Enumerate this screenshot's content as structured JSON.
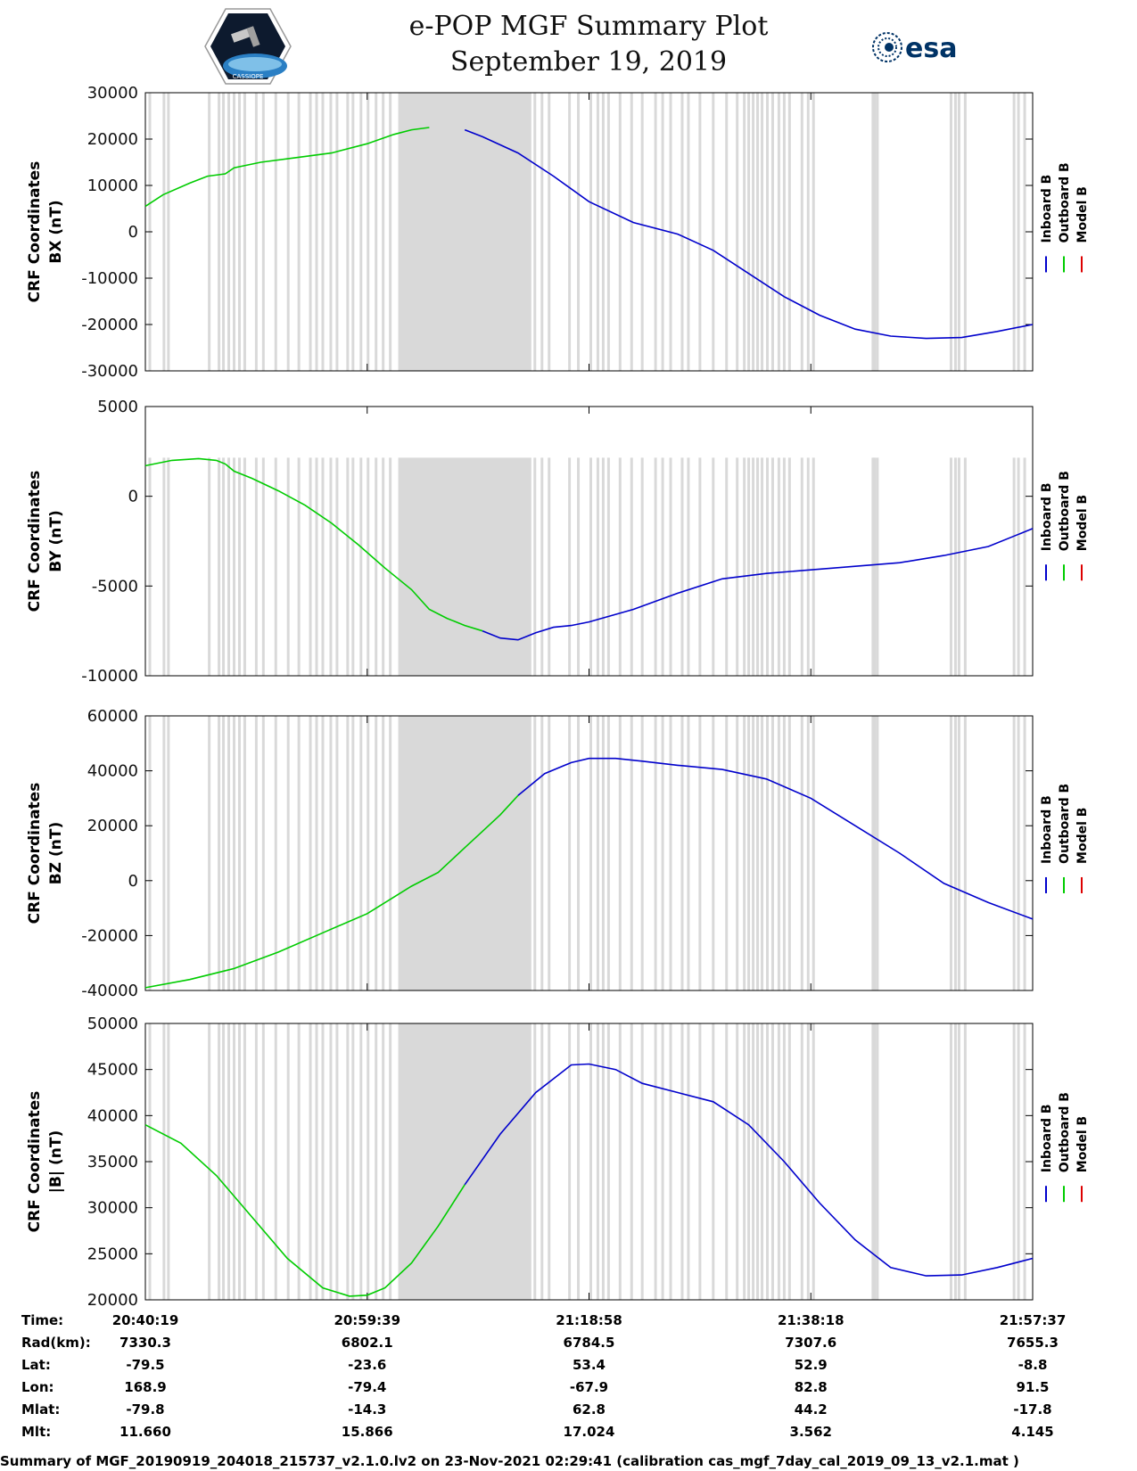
{
  "header": {
    "title": "e-POP MGF Summary Plot",
    "date": "September 19, 2019",
    "logo_left": "CASSIOPE",
    "logo_right": "esa"
  },
  "colors": {
    "inboard": "#0000cc",
    "outboard": "#00cc00",
    "model": "#dd0000",
    "gap": "#d9d9d9"
  },
  "legend": {
    "inboard": "Inboard B",
    "outboard": "Outboard B",
    "model": "Model B"
  },
  "chart_data": [
    {
      "type": "line",
      "title": "BX",
      "ylabel": "CRF Coordinates",
      "ysublabel": "BX (nT)",
      "ylim": [
        -30000,
        30000
      ],
      "yticks": [
        "30000",
        "20000",
        "10000",
        "0",
        "-10000",
        "-20000",
        "-30000"
      ],
      "ytick_values": [
        30000,
        20000,
        10000,
        0,
        -10000,
        -20000,
        -30000
      ],
      "xlim": [
        0,
        1
      ],
      "series": [
        {
          "name": "Outboard B",
          "x": [
            0,
            0.02,
            0.05,
            0.07,
            0.09,
            0.1,
            0.13,
            0.17,
            0.21,
            0.25,
            0.28,
            0.3,
            0.32
          ],
          "y": [
            5500,
            8000,
            10500,
            12000,
            12500,
            13800,
            15000,
            16000,
            17000,
            19000,
            21000,
            22000,
            22500
          ]
        },
        {
          "name": "Inboard B",
          "x": [
            0.36,
            0.38,
            0.42,
            0.46,
            0.5,
            0.55,
            0.6,
            0.64,
            0.68,
            0.72,
            0.76,
            0.8,
            0.84,
            0.88,
            0.92,
            0.96,
            1.0
          ],
          "y": [
            22000,
            20500,
            17000,
            12000,
            6500,
            2000,
            -500,
            -4000,
            -9000,
            -14000,
            -18000,
            -21000,
            -22500,
            -23000,
            -22800,
            -21500,
            -20000
          ]
        }
      ]
    },
    {
      "type": "line",
      "title": "BY",
      "ylabel": "CRF Coordinates",
      "ysublabel": "BY (nT)",
      "ylim": [
        -10000,
        5000
      ],
      "yticks": [
        "5000",
        "0",
        "-5000",
        "-10000"
      ],
      "ytick_values": [
        5000,
        0,
        -5000,
        -10000
      ],
      "xlim": [
        0,
        1
      ],
      "series": [
        {
          "name": "Outboard B",
          "x": [
            0,
            0.03,
            0.06,
            0.08,
            0.09,
            0.1,
            0.12,
            0.15,
            0.18,
            0.21,
            0.24,
            0.27,
            0.3,
            0.32,
            0.34,
            0.36,
            0.38
          ],
          "y": [
            1700,
            2000,
            2100,
            2000,
            1800,
            1400,
            1000,
            300,
            -500,
            -1500,
            -2700,
            -4000,
            -5200,
            -6300,
            -6800,
            -7200,
            -7500
          ]
        },
        {
          "name": "Inboard B",
          "x": [
            0.38,
            0.4,
            0.42,
            0.44,
            0.46,
            0.48,
            0.5,
            0.55,
            0.6,
            0.65,
            0.7,
            0.75,
            0.8,
            0.85,
            0.9,
            0.95,
            1.0
          ],
          "y": [
            -7500,
            -7900,
            -8000,
            -7600,
            -7300,
            -7200,
            -7000,
            -6300,
            -5400,
            -4600,
            -4300,
            -4100,
            -3900,
            -3700,
            -3300,
            -2800,
            -1800
          ]
        }
      ]
    },
    {
      "type": "line",
      "title": "BZ",
      "ylabel": "CRF Coordinates",
      "ysublabel": "BZ (nT)",
      "ylim": [
        -40000,
        60000
      ],
      "yticks": [
        "60000",
        "40000",
        "20000",
        "0",
        "-20000",
        "-40000"
      ],
      "ytick_values": [
        60000,
        40000,
        20000,
        0,
        -20000,
        -40000
      ],
      "xlim": [
        0,
        1
      ],
      "series": [
        {
          "name": "Outboard B",
          "x": [
            0,
            0.05,
            0.1,
            0.15,
            0.2,
            0.25,
            0.28,
            0.3,
            0.33,
            0.36,
            0.38,
            0.4,
            0.42
          ],
          "y": [
            -39000,
            -36000,
            -32000,
            -26000,
            -19000,
            -12000,
            -6000,
            -2000,
            3000,
            12000,
            18000,
            24000,
            31000
          ]
        },
        {
          "name": "Inboard B",
          "x": [
            0.42,
            0.45,
            0.48,
            0.5,
            0.53,
            0.56,
            0.6,
            0.65,
            0.7,
            0.75,
            0.8,
            0.85,
            0.9,
            0.95,
            1.0
          ],
          "y": [
            31000,
            39000,
            43000,
            44500,
            44500,
            43500,
            42000,
            40500,
            37000,
            30000,
            20000,
            10000,
            -1000,
            -8000,
            -14000
          ]
        }
      ]
    },
    {
      "type": "line",
      "title": "|B|",
      "ylabel": "CRF Coordinates",
      "ysublabel": "|B| (nT)",
      "ylim": [
        20000,
        50000
      ],
      "yticks": [
        "50000",
        "45000",
        "40000",
        "35000",
        "30000",
        "25000",
        "20000"
      ],
      "ytick_values": [
        50000,
        45000,
        40000,
        35000,
        30000,
        25000,
        20000
      ],
      "xlim": [
        0,
        1
      ],
      "series": [
        {
          "name": "Outboard B",
          "x": [
            0,
            0.04,
            0.08,
            0.12,
            0.16,
            0.2,
            0.23,
            0.25,
            0.27,
            0.3,
            0.33,
            0.36
          ],
          "y": [
            39000,
            37000,
            33500,
            29000,
            24500,
            21300,
            20400,
            20500,
            21300,
            24000,
            28000,
            32500
          ]
        },
        {
          "name": "Inboard B",
          "x": [
            0.36,
            0.4,
            0.44,
            0.48,
            0.5,
            0.53,
            0.56,
            0.6,
            0.64,
            0.68,
            0.72,
            0.76,
            0.8,
            0.84,
            0.88,
            0.92,
            0.96,
            1.0
          ],
          "y": [
            32500,
            38000,
            42500,
            45500,
            45600,
            45000,
            43500,
            42500,
            41500,
            39000,
            35000,
            30500,
            26500,
            23500,
            22600,
            22700,
            23500,
            24500
          ]
        }
      ]
    }
  ],
  "gaps": {
    "solid": [
      [
        0.285,
        0.435
      ]
    ],
    "lines": [
      0.005,
      0.021,
      0.026,
      0.072,
      0.083,
      0.088,
      0.094,
      0.1,
      0.106,
      0.112,
      0.125,
      0.133,
      0.147,
      0.161,
      0.173,
      0.186,
      0.193,
      0.2,
      0.209,
      0.216,
      0.228,
      0.234,
      0.243,
      0.251,
      0.26,
      0.268,
      0.276,
      0.439,
      0.447,
      0.455,
      0.478,
      0.488,
      0.502,
      0.51,
      0.516,
      0.522,
      0.535,
      0.548,
      0.56,
      0.575,
      0.583,
      0.592,
      0.605,
      0.612,
      0.625,
      0.64,
      0.655,
      0.667,
      0.675,
      0.68,
      0.685,
      0.69,
      0.695,
      0.701,
      0.707,
      0.714,
      0.72,
      0.726,
      0.74,
      0.747,
      0.753,
      0.82,
      0.822,
      0.825,
      0.908,
      0.913,
      0.917,
      0.924,
      0.979,
      0.984,
      0.991
    ]
  },
  "ephemeris": {
    "labels": [
      "Time:",
      "Rad(km):",
      "Lat:",
      "Lon:",
      "Mlat:",
      "Mlt:"
    ],
    "columns": [
      [
        "20:40:19",
        "7330.3",
        "-79.5",
        "168.9",
        "-79.8",
        "11.660"
      ],
      [
        "20:59:39",
        "6802.1",
        "-23.6",
        "-79.4",
        "-14.3",
        "15.866"
      ],
      [
        "21:18:58",
        "6784.5",
        "53.4",
        "-67.9",
        "62.8",
        "17.024"
      ],
      [
        "21:38:18",
        "7307.6",
        "52.9",
        "82.8",
        "44.2",
        "3.562"
      ],
      [
        "21:57:37",
        "7655.3",
        "-8.8",
        "91.5",
        "-17.8",
        "4.145"
      ]
    ]
  },
  "footer": "Summary of MGF_20190919_204018_215737_v2.1.0.lv2 on 23-Nov-2021 02:29:41 (calibration cas_mgf_7day_cal_2019_09_13_v2.1.mat )"
}
